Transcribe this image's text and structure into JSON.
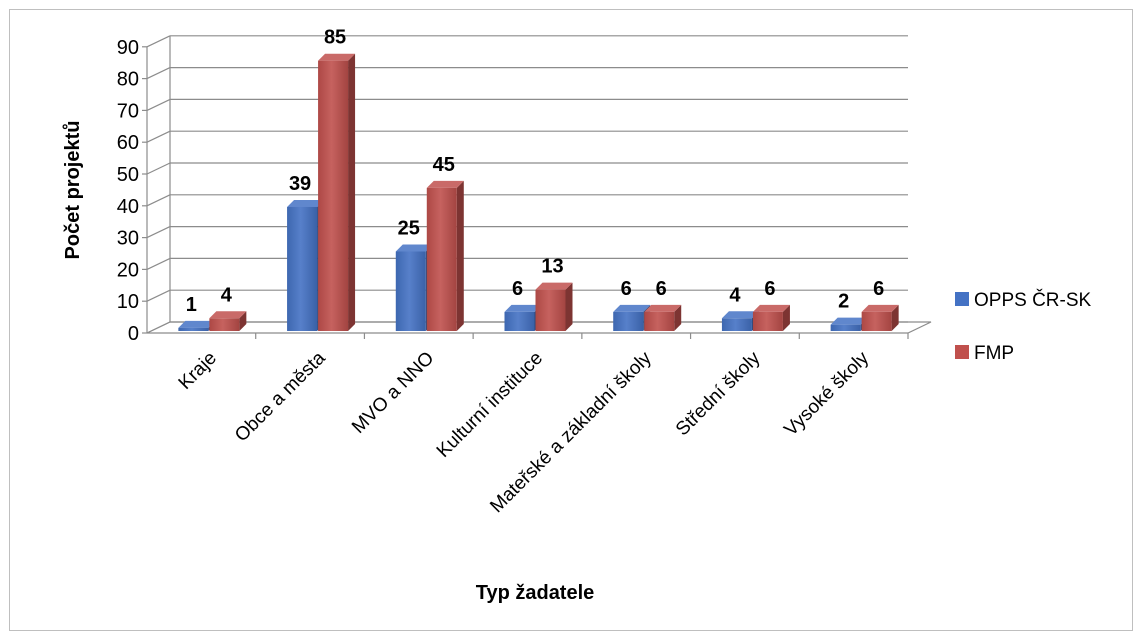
{
  "chart_data": {
    "type": "bar",
    "title": "",
    "xlabel": "Typ žadatele",
    "ylabel": "Počet projektů",
    "ylim": [
      0,
      90
    ],
    "yticks": [
      0,
      10,
      20,
      30,
      40,
      50,
      60,
      70,
      80,
      90
    ],
    "grid": true,
    "legend_position": "right",
    "categories": [
      "Kraje",
      "Obce a města",
      "MVO a NNO",
      "Kulturní instituce",
      "Mateřské a základní školy",
      "Střední školy",
      "Vysoké školy"
    ],
    "series": [
      {
        "name": "OPPS ČR-SK",
        "color": "#4472c4",
        "values": [
          1,
          39,
          25,
          6,
          6,
          4,
          2
        ]
      },
      {
        "name": "FMP",
        "color": "#c0504d",
        "values": [
          4,
          85,
          45,
          13,
          6,
          6,
          6
        ]
      }
    ]
  }
}
